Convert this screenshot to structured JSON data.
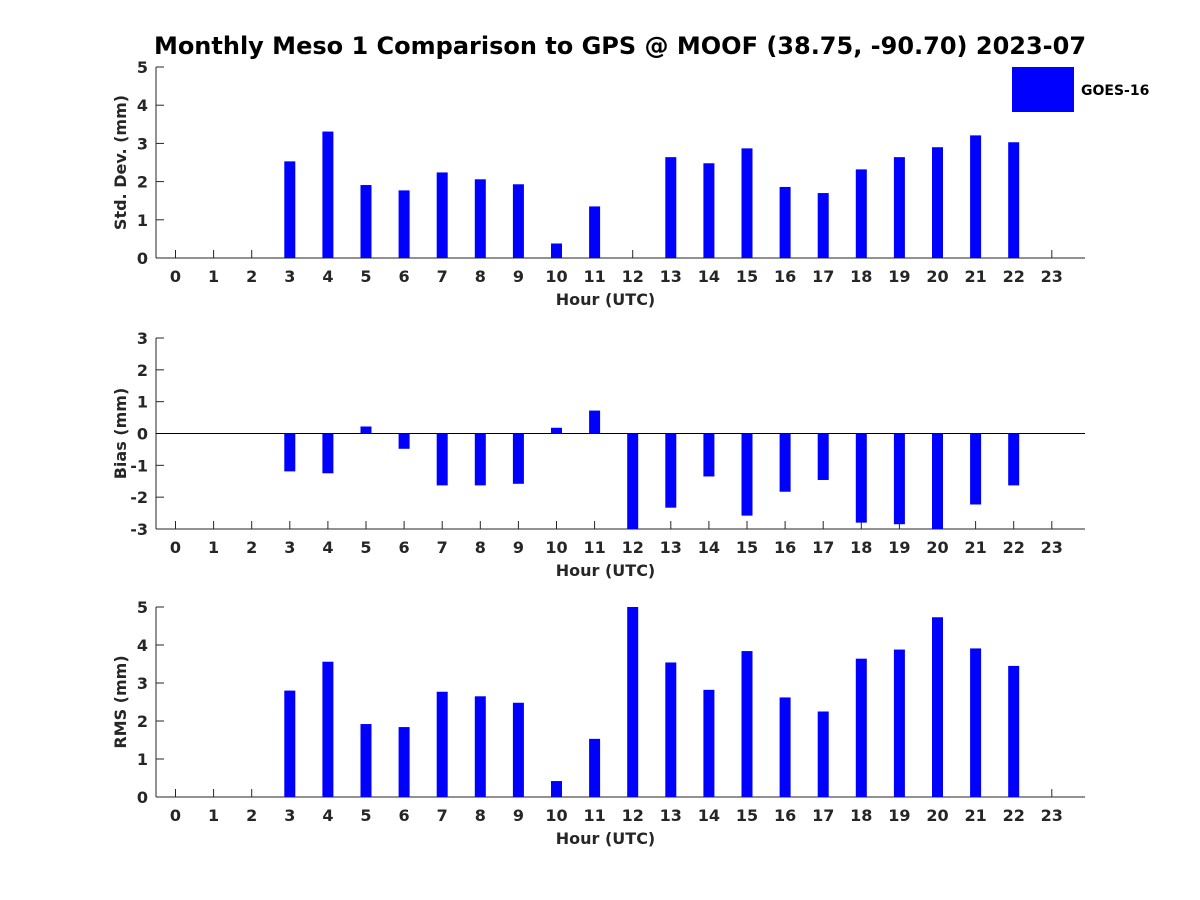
{
  "title": "Monthly Meso 1 Comparison to GPS @ MOOF (38.75, -90.70) 2023-07",
  "colors": {
    "bar": "#0000ff",
    "axis": "#262626"
  },
  "legend": {
    "label": "GOES-16",
    "position": "top-right"
  },
  "chart_data": [
    {
      "type": "bar",
      "xlabel": "Hour (UTC)",
      "ylabel": "Std. Dev. (mm)",
      "ylim": [
        0,
        5
      ],
      "yticks": [
        0,
        1,
        2,
        3,
        4,
        5
      ],
      "categories": [
        "0",
        "1",
        "2",
        "3",
        "4",
        "5",
        "6",
        "7",
        "8",
        "9",
        "10",
        "11",
        "12",
        "13",
        "14",
        "15",
        "16",
        "17",
        "18",
        "19",
        "20",
        "21",
        "22",
        "23"
      ],
      "series": [
        {
          "name": "GOES-16",
          "values": [
            null,
            null,
            null,
            2.53,
            3.31,
            1.91,
            1.77,
            2.24,
            2.06,
            1.93,
            0.38,
            1.35,
            null,
            2.64,
            2.48,
            2.87,
            1.86,
            1.7,
            2.32,
            2.64,
            2.9,
            3.21,
            3.03,
            null
          ]
        }
      ]
    },
    {
      "type": "bar",
      "xlabel": "Hour (UTC)",
      "ylabel": "Bias (mm)",
      "ylim": [
        -3,
        3
      ],
      "yticks": [
        -3,
        -2,
        -1,
        0,
        1,
        2,
        3
      ],
      "categories": [
        "0",
        "1",
        "2",
        "3",
        "4",
        "5",
        "6",
        "7",
        "8",
        "9",
        "10",
        "11",
        "12",
        "13",
        "14",
        "15",
        "16",
        "17",
        "18",
        "19",
        "20",
        "21",
        "22",
        "23"
      ],
      "series": [
        {
          "name": "GOES-16",
          "values": [
            null,
            null,
            null,
            -1.19,
            -1.25,
            0.22,
            -0.48,
            -1.63,
            -1.63,
            -1.58,
            0.18,
            0.72,
            -3.0,
            -2.33,
            -1.35,
            -2.58,
            -1.83,
            -1.46,
            -2.8,
            -2.85,
            -3.0,
            -2.23,
            -1.63,
            null
          ]
        }
      ]
    },
    {
      "type": "bar",
      "xlabel": "Hour (UTC)",
      "ylabel": "RMS (mm)",
      "ylim": [
        0,
        5
      ],
      "yticks": [
        0,
        1,
        2,
        3,
        4,
        5
      ],
      "categories": [
        "0",
        "1",
        "2",
        "3",
        "4",
        "5",
        "6",
        "7",
        "8",
        "9",
        "10",
        "11",
        "12",
        "13",
        "14",
        "15",
        "16",
        "17",
        "18",
        "19",
        "20",
        "21",
        "22",
        "23"
      ],
      "series": [
        {
          "name": "GOES-16",
          "values": [
            null,
            null,
            null,
            2.8,
            3.56,
            1.92,
            1.84,
            2.77,
            2.65,
            2.48,
            0.42,
            1.53,
            5.0,
            3.54,
            2.82,
            3.84,
            2.62,
            2.25,
            3.64,
            3.88,
            4.73,
            3.91,
            3.45,
            null
          ]
        }
      ]
    }
  ]
}
